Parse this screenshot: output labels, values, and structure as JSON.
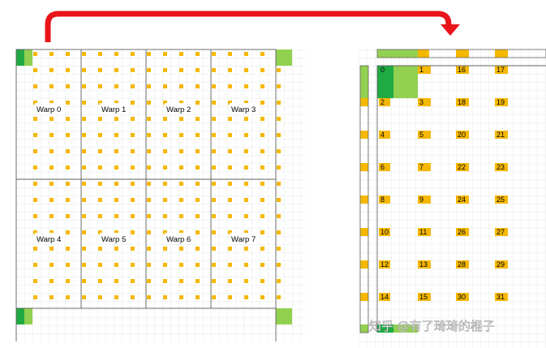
{
  "left_panel": {
    "warps": [
      "Warp 0",
      "Warp 1",
      "Warp 2",
      "Warp 3",
      "Warp 4",
      "Warp 5",
      "Warp 6",
      "Warp 7"
    ]
  },
  "right_panel": {
    "thread_ids": [
      [
        "0",
        "1",
        "16",
        "17"
      ],
      [
        "2",
        "3",
        "18",
        "19"
      ],
      [
        "4",
        "5",
        "20",
        "21"
      ],
      [
        "6",
        "7",
        "22",
        "23"
      ],
      [
        "8",
        "9",
        "24",
        "25"
      ],
      [
        "10",
        "11",
        "26",
        "27"
      ],
      [
        "12",
        "13",
        "28",
        "29"
      ],
      [
        "14",
        "15",
        "30",
        "31"
      ]
    ]
  },
  "watermark": "知乎 @有了琦琦的棍子",
  "colors": {
    "arrow": "#e8141a",
    "thread": "#f5b800",
    "halo_dark": "#1faa44",
    "halo_light": "#92d050",
    "grid": "#d4d8dc",
    "border": "#606060"
  }
}
